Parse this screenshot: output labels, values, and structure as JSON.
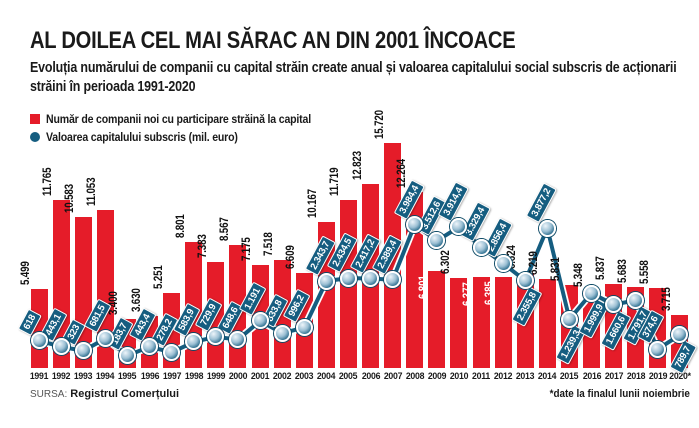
{
  "header": {
    "title": "AL DOILEA CEL MAI SĂRAC AN DIN 2001 ÎNCOACE",
    "subtitle": "Evoluția numărului de companii cu capital străin create anual și valoarea capitalului social subscris de acționarii străini în perioada 1991-2020"
  },
  "legend": {
    "items": [
      {
        "label": "Număr de companii noi cu participare străină la capital",
        "color": "#e51c29",
        "shape": "square"
      },
      {
        "label": "Valoarea capitalului subscris (mil. euro)",
        "color": "#155d80",
        "shape": "circle"
      }
    ]
  },
  "footer": {
    "source_label": "SURSA:",
    "source_name": "Registrul Comerțului",
    "note": "*date la finalul lunii noiembrie"
  },
  "chart_data": {
    "type": "bar",
    "combo": "bar+line",
    "grid": false,
    "legend_position": "top-left",
    "ylim_bar": [
      0,
      16000
    ],
    "ylim_line": [
      0,
      4200
    ],
    "categories": [
      "1991",
      "1992",
      "1993",
      "1994",
      "1995",
      "1996",
      "1997",
      "1998",
      "1999",
      "2000",
      "2001",
      "2002",
      "2003",
      "2004",
      "2005",
      "2006",
      "2007",
      "2008",
      "2009",
      "2010",
      "2011",
      "2012",
      "2013",
      "2014",
      "2015",
      "2016",
      "2017",
      "2018",
      "2019",
      "2020*"
    ],
    "series": [
      {
        "name": "Număr de companii noi cu participare străină la capital",
        "type": "bar",
        "color": "#e51c29",
        "values": [
          5499,
          11765,
          10583,
          11053,
          3400,
          3630,
          5251,
          8801,
          7383,
          8567,
          7175,
          7518,
          6609,
          10167,
          11719,
          12823,
          15720,
          12264,
          6801,
          6302,
          6377,
          6385,
          6624,
          6219,
          5831,
          5348,
          5837,
          5683,
          5558,
          3715
        ],
        "labels": [
          "5.499",
          "11.765",
          "10.583",
          "11.053",
          "3.400",
          "3.630",
          "5.251",
          "8.801",
          "7.383",
          "8.567",
          "7.175",
          "7.518",
          "6.609",
          "10.167",
          "11.719",
          "12.823",
          "15.720",
          "12.264",
          "6.801",
          "6.302",
          "6.377",
          "6.385",
          "6.624",
          "6.219",
          "5.831",
          "5.348",
          "5.837",
          "5.683",
          "5.558",
          "3.715"
        ],
        "label_inside_white": [
          "2009",
          "2011",
          "2012"
        ]
      },
      {
        "name": "Valoarea capitalului subscris (mil. euro)",
        "type": "line",
        "color": "#155d80",
        "values": [
          618,
          443.1,
          323,
          681.5,
          183.7,
          443.4,
          278.2,
          583.9,
          729.9,
          648.6,
          1191,
          833.8,
          996.2,
          2343.7,
          2434.5,
          2417.2,
          2389.4,
          3984.4,
          3512.6,
          3914.4,
          3329.4,
          2856.4,
          2355.8,
          3877.2,
          1239.3,
          1999.9,
          1660.6,
          1791.7,
          374.6,
          789.7
        ],
        "labels": [
          "618",
          "443,1",
          "323",
          "681,5",
          "183,7",
          "443,4",
          "278,2",
          "583,9",
          "729,9",
          "648,6",
          "1.191",
          "833,8",
          "996,2",
          "2.343,7",
          "2.434,5",
          "2.417,2",
          "2.389,4",
          "3.984,4",
          "3.512,6",
          "3.914,4",
          "3.329,4",
          "2.856,4",
          "2.355,8",
          "3.877,2",
          "1.239,3",
          "1.999,9",
          "1.660,6",
          "1.791,7",
          "374,6",
          "789,7"
        ],
        "label_below": [
          "2013",
          "2015",
          "2016",
          "2017",
          "2018",
          "2020*"
        ]
      }
    ]
  }
}
